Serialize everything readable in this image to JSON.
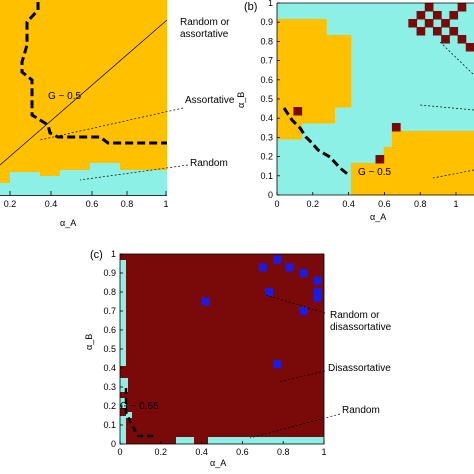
{
  "colors": {
    "assortative": "#FFC000",
    "random": "#8CF0E6",
    "disassortative": "#7A0A0A",
    "blue": "#1B1BE6",
    "axis": "#000000"
  },
  "chart_data": [
    {
      "panel": "",
      "type": "heatmap",
      "xlabel": "α_A",
      "x_ticks": [
        "0.2",
        "0.4",
        "0.6",
        "0.8",
        "1"
      ],
      "annotations": [
        {
          "text": "Random or",
          "target": "boundary line"
        },
        {
          "text": "assortative",
          "target": "boundary line"
        },
        {
          "text": "Assortative",
          "target": "yellow region"
        },
        {
          "text": "Random",
          "target": "cyan region"
        },
        {
          "text": "G ~ 0.5",
          "target": "dashed contour"
        }
      ],
      "regions": {
        "assortative": "most of panel",
        "random": "bottom strip (α_B < ~0.1)"
      }
    },
    {
      "panel": "(b)",
      "type": "heatmap",
      "xlabel": "α_A",
      "ylabel": "α_B",
      "xlim": [
        0,
        1
      ],
      "ylim": [
        0,
        1
      ],
      "x_ticks": [
        "0",
        "0.2",
        "0.4",
        "0.6",
        "0.8",
        "1"
      ],
      "y_ticks": [
        "0",
        "0.1",
        "0.2",
        "0.3",
        "0.4",
        "0.5",
        "0.6",
        "0.7",
        "0.8",
        "0.9",
        "1"
      ],
      "annotations": [
        {
          "text": "G ~ 0.5",
          "target": "dashed contour"
        }
      ],
      "contour_G05": [
        [
          0.05,
          0.38
        ],
        [
          0.15,
          0.3
        ],
        [
          0.28,
          0.2
        ],
        [
          0.35,
          0.14
        ],
        [
          0.42,
          0.06
        ]
      ]
    },
    {
      "panel": "(c)",
      "type": "heatmap",
      "xlabel": "α_A",
      "ylabel": "α_B",
      "xlim": [
        0,
        1
      ],
      "ylim": [
        0,
        1
      ],
      "x_ticks": [
        "0",
        "0.2",
        "0.4",
        "0.6",
        "0.8",
        "1"
      ],
      "y_ticks": [
        "0",
        "0.1",
        "0.2",
        "0.3",
        "0.4",
        "0.5",
        "0.6",
        "0.7",
        "0.8",
        "0.9",
        "1"
      ],
      "annotations": [
        {
          "text": "Random or",
          "target": "blue cells"
        },
        {
          "text": "disassortative",
          "target": "blue cells"
        },
        {
          "text": "Disassortative",
          "target": "dark red region"
        },
        {
          "text": "Random",
          "target": "cyan strip"
        },
        {
          "text": "G ~ 0.65",
          "target": "dashed contour"
        }
      ],
      "blue_cells": [
        [
          0.42,
          0.75
        ],
        [
          0.7,
          0.93
        ],
        [
          0.73,
          0.8
        ],
        [
          0.77,
          0.97
        ],
        [
          0.83,
          0.93
        ],
        [
          0.9,
          0.9
        ],
        [
          0.97,
          0.86
        ],
        [
          0.97,
          0.8
        ],
        [
          0.97,
          0.77
        ],
        [
          0.9,
          0.7
        ],
        [
          0.77,
          0.42
        ]
      ],
      "random_cells": {
        "left_strip": "α_A ≈ 0.0–0.03 for α_B 0.39–0.97",
        "bottom_strip": "α_B < 0.02 for α_A 0.17–1"
      }
    }
  ]
}
